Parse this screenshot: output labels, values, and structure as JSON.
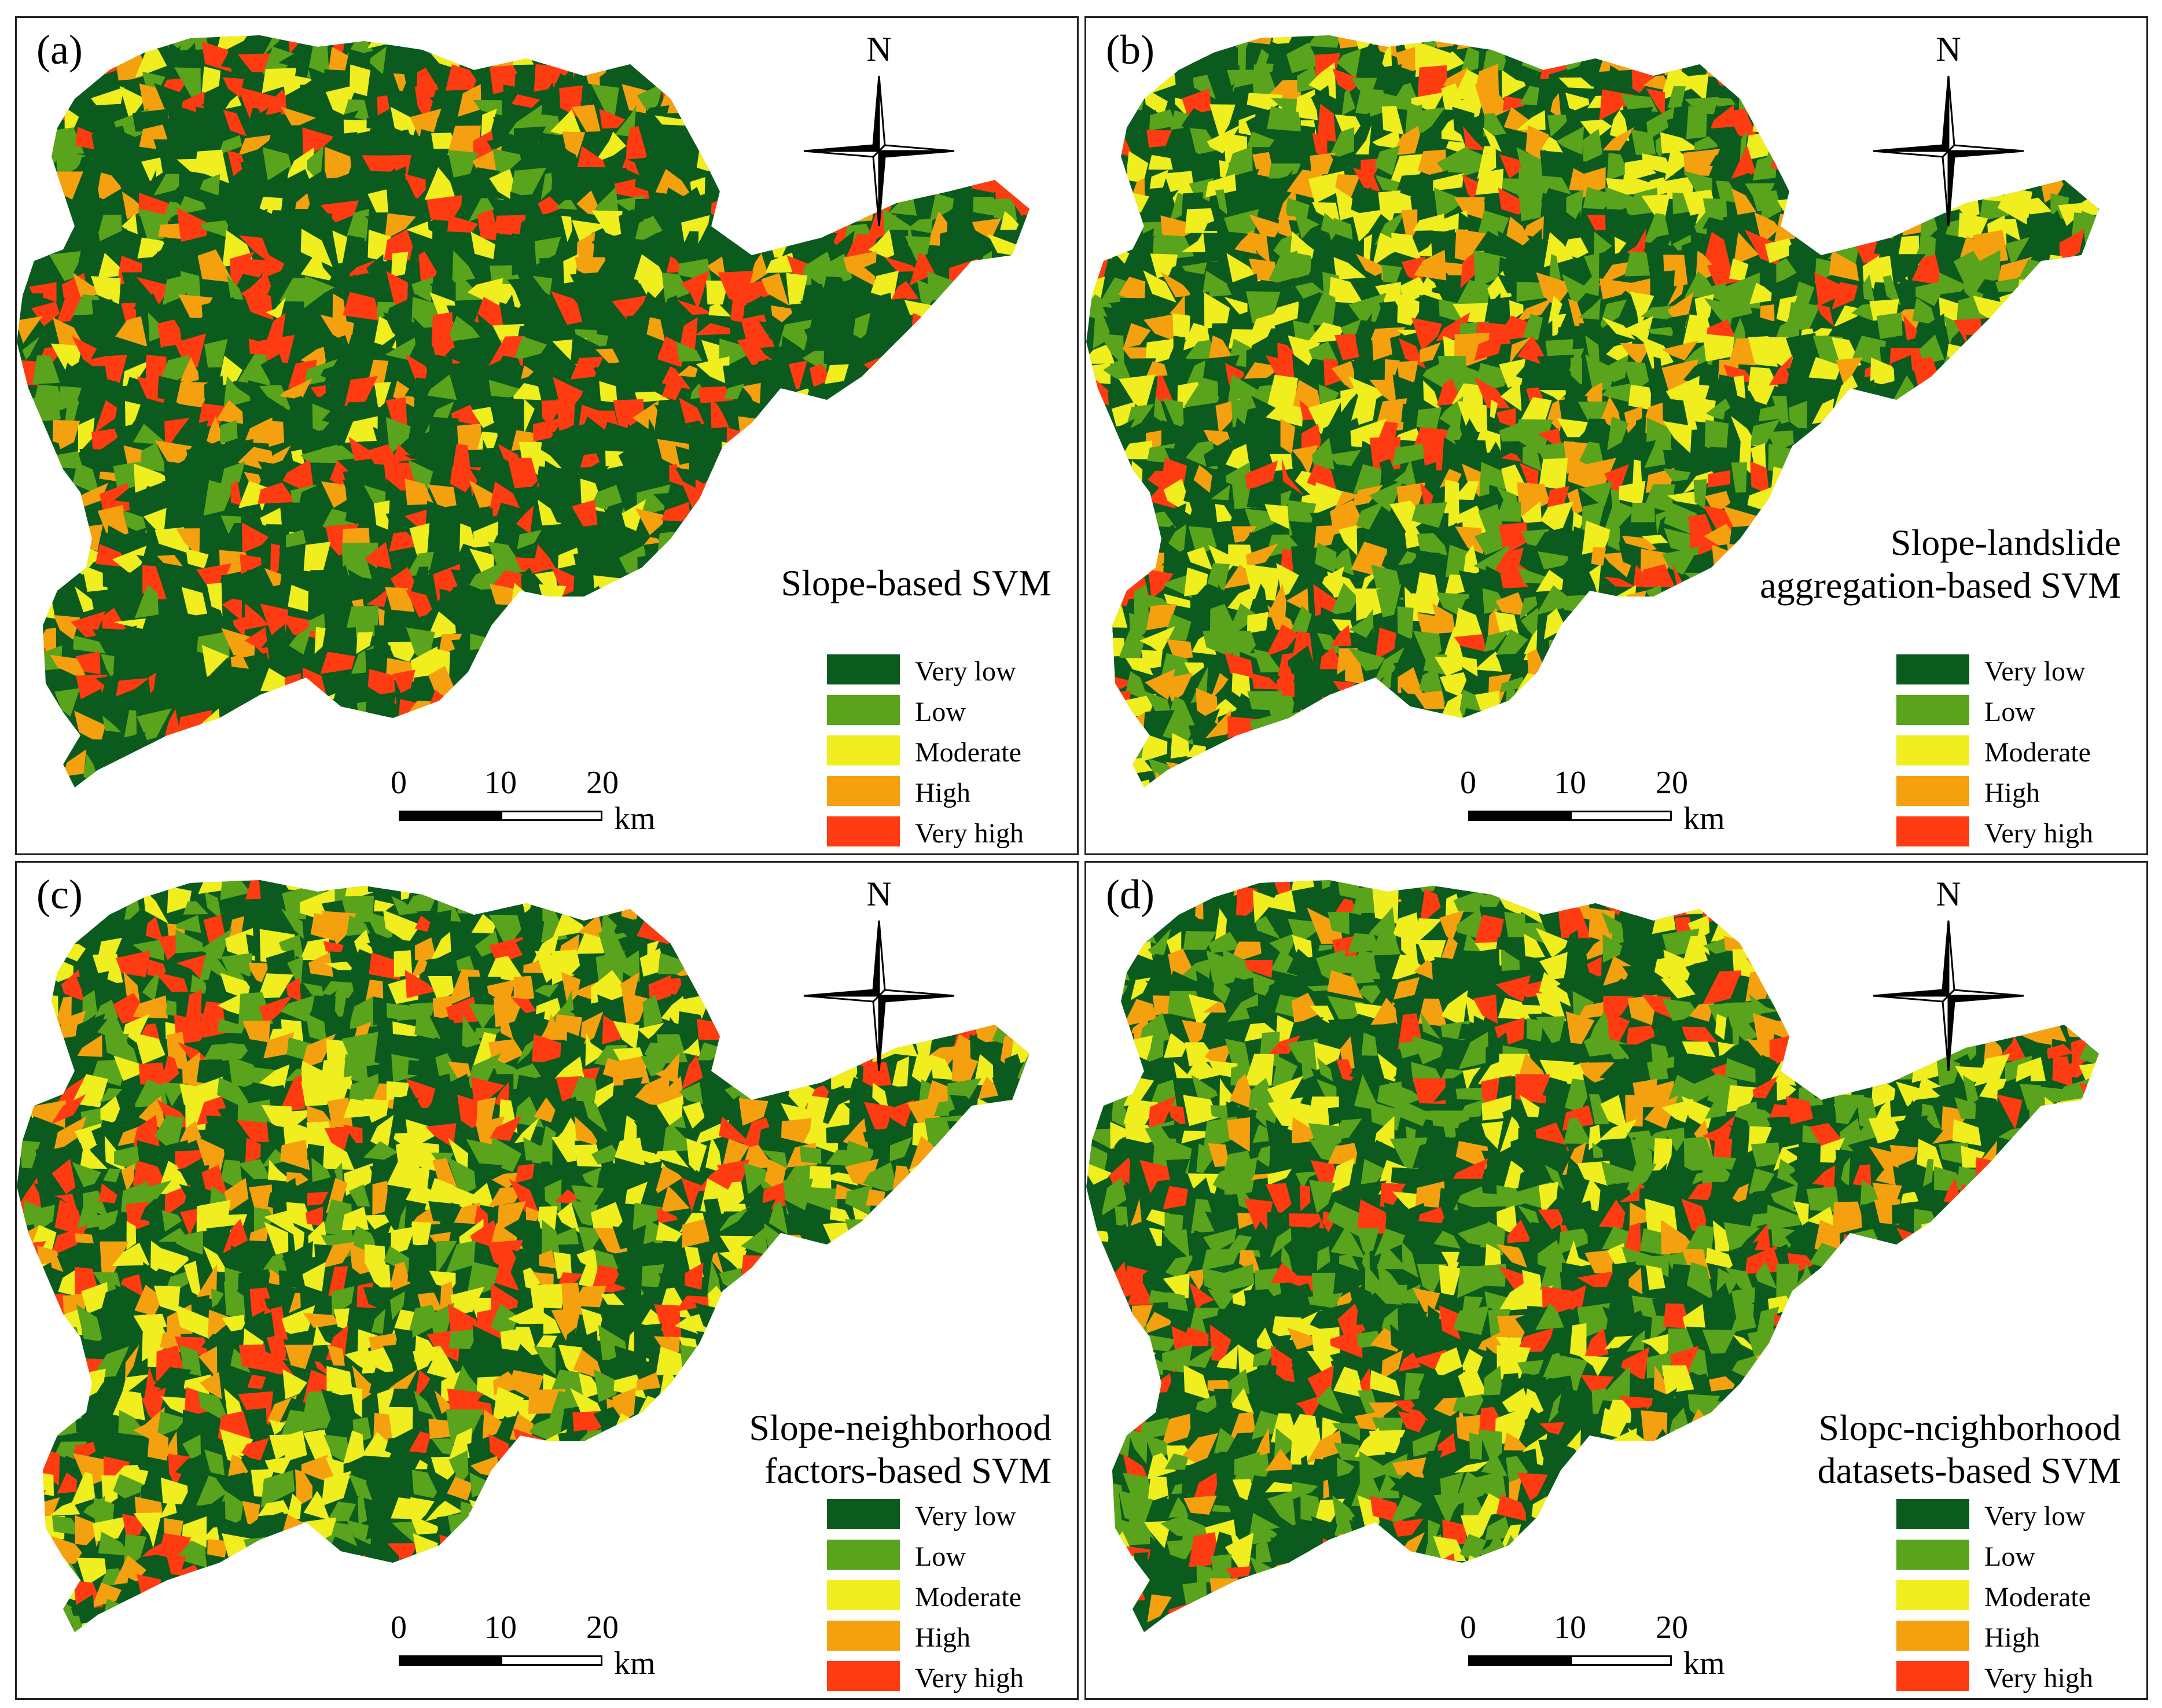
{
  "legend": {
    "items": [
      {
        "label": "Very low",
        "color": "#0b5a1e"
      },
      {
        "label": "Low",
        "color": "#5aa31c"
      },
      {
        "label": "Moderate",
        "color": "#f0ee1e"
      },
      {
        "label": "High",
        "color": "#f5a00f"
      },
      {
        "label": "Very high",
        "color": "#ff3b12"
      }
    ]
  },
  "compass": {
    "label": "N"
  },
  "scale_bar": {
    "ticks": [
      "0",
      "10",
      "20"
    ],
    "unit": "km"
  },
  "panels": [
    {
      "id": "a",
      "label": "(a)",
      "title_lines": [
        "Slope-based SVM"
      ],
      "class_mix": [
        0.46,
        0.14,
        0.12,
        0.1,
        0.18
      ]
    },
    {
      "id": "b",
      "label": "(b)",
      "title_lines": [
        "Slope-landslide",
        "aggregation-based SVM"
      ],
      "class_mix": [
        0.24,
        0.28,
        0.24,
        0.14,
        0.1
      ]
    },
    {
      "id": "c",
      "label": "(c)",
      "title_lines": [
        "Slope-neighborhood",
        "factors-based SVM"
      ],
      "class_mix": [
        0.26,
        0.24,
        0.22,
        0.15,
        0.13
      ]
    },
    {
      "id": "d",
      "label": "(d)",
      "title_lines": [
        "Slopc-ncighborhood",
        "datasets-based SVM"
      ],
      "class_mix": [
        0.32,
        0.28,
        0.18,
        0.1,
        0.12
      ]
    }
  ]
}
